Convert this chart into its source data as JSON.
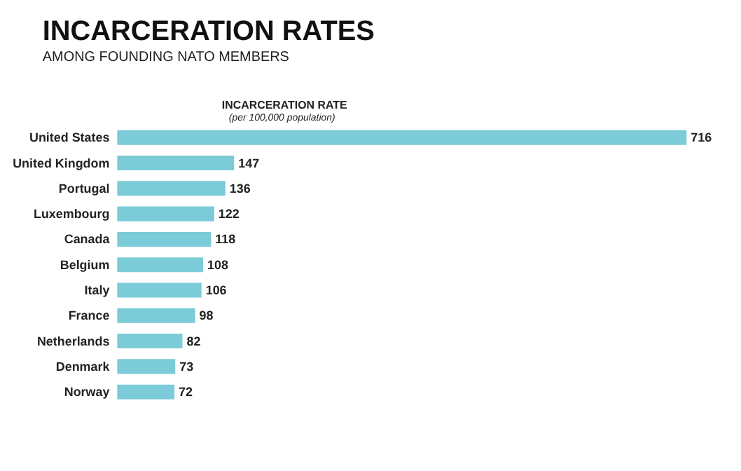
{
  "chart_data": {
    "type": "bar",
    "orientation": "horizontal",
    "title": "INCARCERATION RATES",
    "subtitle": "AMONG FOUNDING NATO MEMBERS",
    "xlabel": "INCARCERATION RATE",
    "annotations": [
      "(per 100,000 population)"
    ],
    "categories": [
      "United States",
      "United Kingdom",
      "Portugal",
      "Luxembourg",
      "Canada",
      "Belgium",
      "Italy",
      "France",
      "Netherlands",
      "Denmark",
      "Norway"
    ],
    "values": [
      716,
      147,
      136,
      122,
      118,
      108,
      106,
      98,
      82,
      73,
      72
    ],
    "color": "#7ccbd8",
    "data_labels": true
  }
}
